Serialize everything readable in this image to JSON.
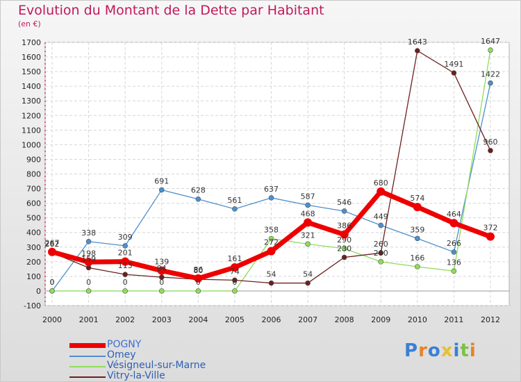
{
  "chart_data": {
    "type": "line",
    "title": "Evolution du Montant de la Dette par Habitant",
    "subtitle": "(en €)",
    "xlabel": "",
    "ylabel": "",
    "ylim": [
      -100,
      1700
    ],
    "yticks": [
      -100,
      0,
      100,
      200,
      300,
      400,
      500,
      600,
      700,
      800,
      900,
      1000,
      1100,
      1200,
      1300,
      1400,
      1500,
      1600,
      1700
    ],
    "categories": [
      "2000",
      "2001",
      "2002",
      "2003",
      "2004",
      "2005",
      "2006",
      "2007",
      "2008",
      "2009",
      "2010",
      "2011",
      "2012"
    ],
    "grid": true,
    "legend_position": "bottom-left",
    "series": [
      {
        "name": "Omey",
        "color": "#4d8fcc",
        "values": [
          0,
          338,
          309,
          691,
          628,
          561,
          637,
          587,
          546,
          449,
          359,
          266,
          1422
        ]
      },
      {
        "name": "Vésigneul-sur-Marne",
        "color": "#8fdc5c",
        "values": [
          0,
          0,
          0,
          0,
          0,
          0,
          358,
          321,
          290,
          200,
          166,
          136,
          1647
        ]
      },
      {
        "name": "Vitry-la-Ville",
        "color": "#6b1f1f",
        "values": [
          262,
          159,
          113,
          94,
          80,
          74,
          54,
          54,
          230,
          260,
          1643,
          1491,
          960
        ]
      },
      {
        "name": "POGNY",
        "color": "#ee0000",
        "values": [
          267,
          198,
          201,
          139,
          86,
          161,
          272,
          468,
          386,
          680,
          574,
          464,
          372
        ]
      }
    ],
    "legend": [
      {
        "name": "POGNY",
        "color": "#ee0000"
      },
      {
        "name": "Omey",
        "color": "#4d8fcc"
      },
      {
        "name": "Vésigneul-sur-Marne",
        "color": "#8fdc5c"
      },
      {
        "name": "Vitry-la-Ville",
        "color": "#6b1f1f"
      }
    ]
  },
  "logo": {
    "text": "Proxiti"
  }
}
